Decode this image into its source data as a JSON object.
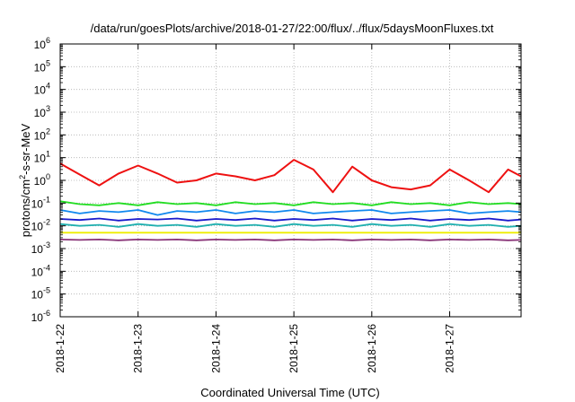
{
  "chart_data": {
    "type": "line",
    "title": "/data/run/goesPlots/archive/2018-01-27/22:00/flux/../flux/5daysMoonFluxes.txt",
    "xlabel": "Coordinated Universal Time (UTC)",
    "ylabel": {
      "base": "protons/cm",
      "sup": "2",
      "rest": "-s-sr-MeV"
    },
    "yscale": "log",
    "ylim": [
      1e-06,
      1000000.0
    ],
    "xlim": [
      "2018-01-22",
      "2018-01-27 22:00"
    ],
    "grid": true,
    "legend": "none",
    "y_ticks": [
      {
        "base": "10",
        "exp": "-6"
      },
      {
        "base": "10",
        "exp": "-5"
      },
      {
        "base": "10",
        "exp": "-4"
      },
      {
        "base": "10",
        "exp": "-3"
      },
      {
        "base": "10",
        "exp": "-2"
      },
      {
        "base": "10",
        "exp": "-1"
      },
      {
        "base": "10",
        "exp": "0"
      },
      {
        "base": "10",
        "exp": "1"
      },
      {
        "base": "10",
        "exp": "2"
      },
      {
        "base": "10",
        "exp": "3"
      },
      {
        "base": "10",
        "exp": "4"
      },
      {
        "base": "10",
        "exp": "5"
      },
      {
        "base": "10",
        "exp": "6"
      }
    ],
    "x_ticks": [
      "2018-1-22",
      "2018-1-23",
      "2018-1-24",
      "2018-1-25",
      "2018-1-26",
      "2018-1-27"
    ],
    "x": [
      "2018-01-22 00:00",
      "2018-01-22 06:00",
      "2018-01-22 12:00",
      "2018-01-22 18:00",
      "2018-01-23 00:00",
      "2018-01-23 06:00",
      "2018-01-23 12:00",
      "2018-01-23 18:00",
      "2018-01-24 00:00",
      "2018-01-24 06:00",
      "2018-01-24 12:00",
      "2018-01-24 18:00",
      "2018-01-25 00:00",
      "2018-01-25 06:00",
      "2018-01-25 12:00",
      "2018-01-25 18:00",
      "2018-01-26 00:00",
      "2018-01-26 06:00",
      "2018-01-26 12:00",
      "2018-01-26 18:00",
      "2018-01-27 00:00",
      "2018-01-27 06:00",
      "2018-01-27 12:00",
      "2018-01-27 18:00",
      "2018-01-27 22:00"
    ],
    "series": [
      {
        "color": "#ee1111",
        "values": [
          5.5,
          1.8,
          0.6,
          2.0,
          4.5,
          2.0,
          0.8,
          1.0,
          2.0,
          1.5,
          1.0,
          1.7,
          8.0,
          3.0,
          0.3,
          4.0,
          1.0,
          0.5,
          0.4,
          0.6,
          3.0,
          1.0,
          0.3,
          3.0,
          1.5
        ]
      },
      {
        "color": "#22dd22",
        "values": [
          0.12,
          0.09,
          0.08,
          0.1,
          0.08,
          0.11,
          0.09,
          0.1,
          0.08,
          0.11,
          0.09,
          0.1,
          0.08,
          0.11,
          0.09,
          0.1,
          0.08,
          0.11,
          0.09,
          0.1,
          0.08,
          0.11,
          0.09,
          0.1,
          0.09
        ]
      },
      {
        "color": "#1188ee",
        "values": [
          0.05,
          0.035,
          0.045,
          0.04,
          0.05,
          0.03,
          0.045,
          0.04,
          0.05,
          0.035,
          0.045,
          0.04,
          0.05,
          0.035,
          0.04,
          0.045,
          0.05,
          0.035,
          0.04,
          0.045,
          0.05,
          0.035,
          0.04,
          0.045,
          0.04
        ]
      },
      {
        "color": "#20b0b0",
        "values": [
          0.012,
          0.01,
          0.011,
          0.009,
          0.012,
          0.01,
          0.011,
          0.009,
          0.012,
          0.01,
          0.011,
          0.009,
          0.012,
          0.01,
          0.011,
          0.009,
          0.012,
          0.01,
          0.011,
          0.009,
          0.012,
          0.01,
          0.011,
          0.009,
          0.01
        ]
      },
      {
        "color": "#1a1acc",
        "values": [
          0.02,
          0.018,
          0.021,
          0.017,
          0.02,
          0.019,
          0.021,
          0.017,
          0.02,
          0.018,
          0.021,
          0.017,
          0.02,
          0.018,
          0.021,
          0.017,
          0.02,
          0.018,
          0.021,
          0.017,
          0.02,
          0.018,
          0.021,
          0.017,
          0.019
        ]
      },
      {
        "color": "#eeee00",
        "values": [
          0.005,
          0.005,
          0.005,
          0.005,
          0.005,
          0.005,
          0.005,
          0.005,
          0.005,
          0.005,
          0.005,
          0.005,
          0.005,
          0.005,
          0.005,
          0.005,
          0.005,
          0.005,
          0.005,
          0.005,
          0.005,
          0.005,
          0.005,
          0.005,
          0.005
        ]
      },
      {
        "color": "#883377",
        "values": [
          0.0025,
          0.0024,
          0.0025,
          0.0023,
          0.0025,
          0.0024,
          0.0025,
          0.0023,
          0.0025,
          0.0024,
          0.0025,
          0.0023,
          0.0025,
          0.0024,
          0.0025,
          0.0023,
          0.0025,
          0.0024,
          0.0025,
          0.0023,
          0.0025,
          0.0024,
          0.0025,
          0.0023,
          0.0024
        ]
      }
    ]
  }
}
